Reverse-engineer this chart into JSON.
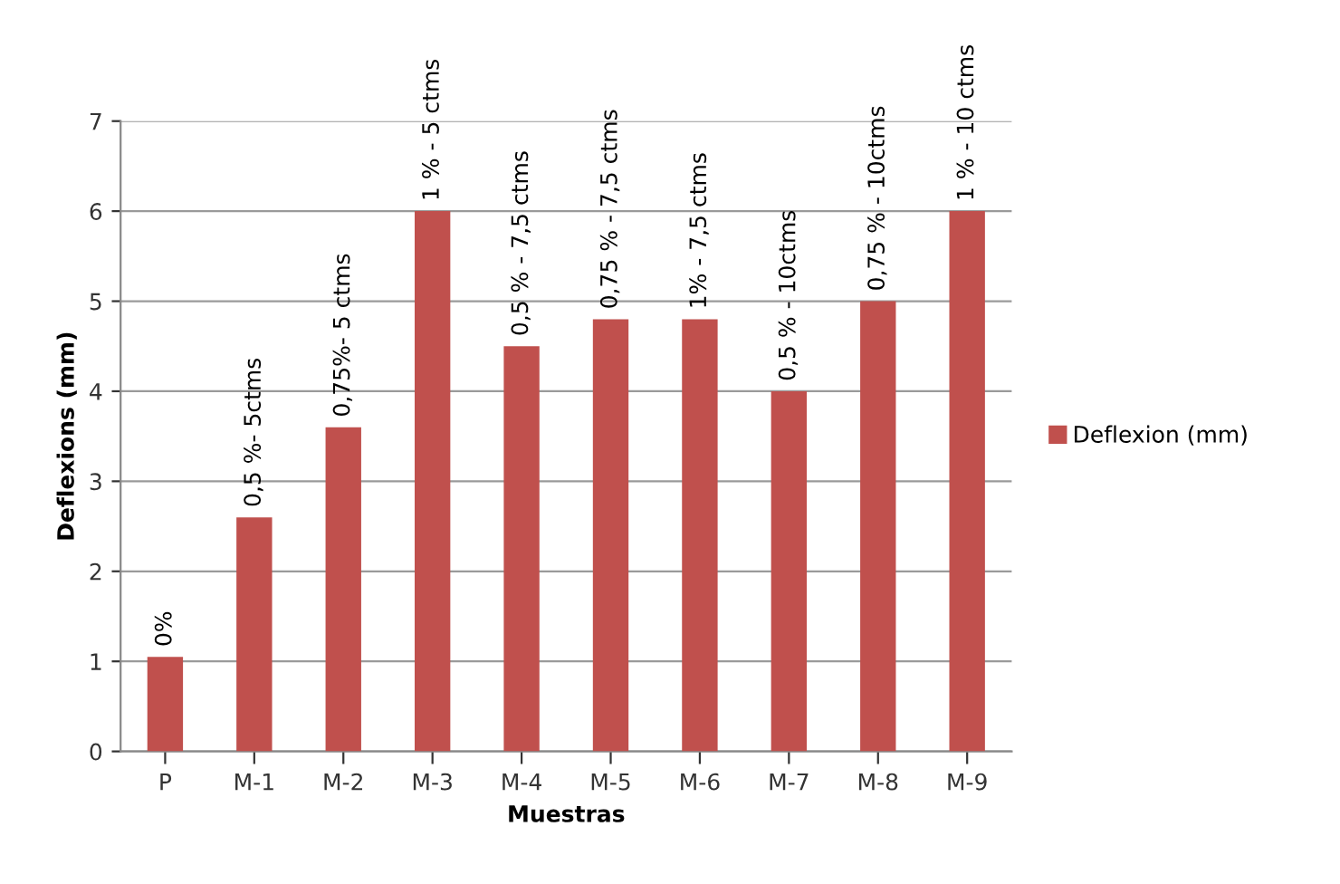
{
  "chart_data": {
    "type": "bar",
    "xlabel": "Muestras",
    "ylabel": "Deflexions (mm)",
    "categories": [
      "P",
      "M-1",
      "M-2",
      "M-3",
      "M-4",
      "M-5",
      "M-6",
      "M-7",
      "M-8",
      "M-9"
    ],
    "series": [
      {
        "name": "Deflexion (mm)",
        "color": "#c0504d",
        "values": [
          1.05,
          2.6,
          3.6,
          6.0,
          4.5,
          4.8,
          4.8,
          4.0,
          5.0,
          6.0
        ]
      }
    ],
    "ylim": [
      0,
      7
    ],
    "yticks": [
      0,
      1,
      2,
      3,
      4,
      5,
      6,
      7
    ],
    "grid": "y",
    "legend": "right",
    "annotations": [
      {
        "text": "0%",
        "x": "P",
        "y": 1.05
      },
      {
        "text": "0,5 %- 5ctms",
        "x": "M-1",
        "y": 2.6
      },
      {
        "text": "0,75%- 5 ctms",
        "x": "M-2",
        "y": 3.6
      },
      {
        "text": "1 % - 5 ctms",
        "x": "M-3",
        "y": 6.0
      },
      {
        "text": "0,5 % - 7,5 ctms",
        "x": "M-4",
        "y": 4.5
      },
      {
        "text": "0,75 % - 7,5 ctms",
        "x": "M-5",
        "y": 4.8
      },
      {
        "text": "1% - 7,5 ctms",
        "x": "M-6",
        "y": 4.8
      },
      {
        "text": "0,5 % - 10ctms",
        "x": "M-7",
        "y": 4.0
      },
      {
        "text": "0,75 % - 10ctms",
        "x": "M-8",
        "y": 5.0
      },
      {
        "text": "1 % - 10 ctms",
        "x": "M-9",
        "y": 6.0
      }
    ]
  }
}
